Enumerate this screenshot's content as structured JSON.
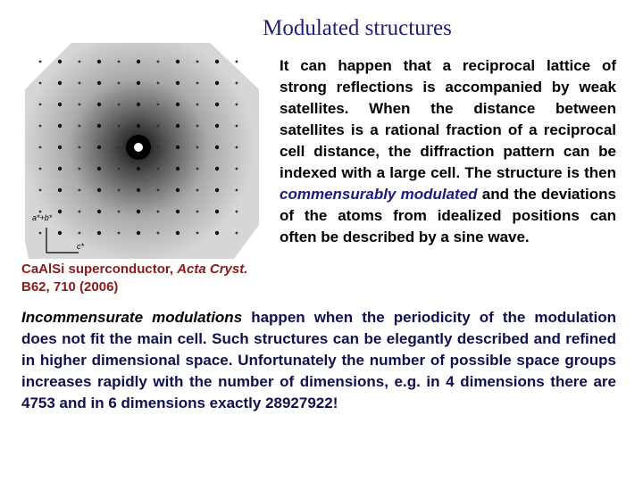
{
  "title": "Modulated structures",
  "figure": {
    "labels": [
      "a*+b*",
      "c*"
    ],
    "caption": [
      "CaAlSi superconductor, ",
      "Acta Cryst.",
      " B62, 710 (2006)"
    ]
  },
  "paragraphs": [
    [
      "It can happen that a reciprocal lattice of strong reflections is accompanied by weak satellites. When the distance between satellites is a rational fraction of a reciprocal cell distance, the diffraction pattern can be indexed with a large cell. The structure is then ",
      "commensurably modulated",
      " and the deviations of the atoms from idealized positions can often be described by a sine wave."
    ],
    [
      "Incommensurate modulations",
      " happen when the periodicity of the modulation does not fit the main cell. Such structures can be elegantly described and refined in higher dimensional space. Unfortunately the number of possible space groups increases rapidly with the number of dimensions, e.g. in 4 dimensions there are 4753 and in 6 dimensions exactly 28927922!"
    ]
  ]
}
